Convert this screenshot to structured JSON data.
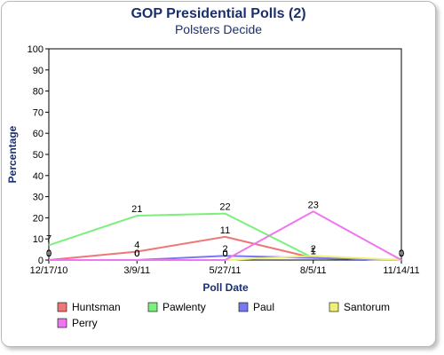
{
  "chart_data": {
    "type": "line",
    "title": "GOP Presidential Polls (2)",
    "subtitle": "Polsters Decide",
    "xlabel": "Poll Date",
    "ylabel": "Percentage",
    "categories": [
      "12/17/10",
      "3/9/11",
      "5/27/11",
      "8/5/11",
      "11/14/11"
    ],
    "ylim": [
      0,
      100
    ],
    "yticks": [
      0,
      10,
      20,
      30,
      40,
      50,
      60,
      70,
      80,
      90,
      100
    ],
    "grid": false,
    "legend_position": "bottom",
    "series": [
      {
        "name": "Huntsman",
        "color": "#f07575",
        "values": [
          0,
          4,
          11,
          1,
          0
        ]
      },
      {
        "name": "Pawlenty",
        "color": "#7cf07c",
        "values": [
          7,
          21,
          22,
          1,
          0
        ]
      },
      {
        "name": "Paul",
        "color": "#7878f0",
        "values": [
          0,
          0,
          2,
          1,
          0
        ]
      },
      {
        "name": "Santorum",
        "color": "#f0f075",
        "values": [
          0,
          0,
          0,
          2,
          0
        ]
      },
      {
        "name": "Perry",
        "color": "#f075f0",
        "values": [
          0,
          0,
          0,
          23,
          0
        ]
      }
    ]
  }
}
